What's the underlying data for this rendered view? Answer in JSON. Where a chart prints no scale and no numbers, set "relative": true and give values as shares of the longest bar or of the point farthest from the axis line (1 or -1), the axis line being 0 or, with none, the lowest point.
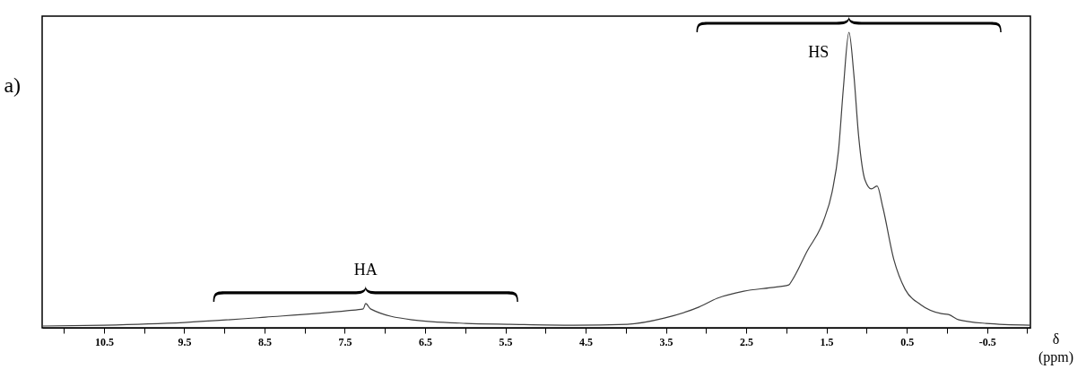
{
  "chart_data": {
    "type": "line",
    "title": "a)",
    "xlabel": "δ (ppm)",
    "relative": true,
    "grid": false,
    "xlim": [
      11.27,
      -1.04
    ],
    "xticks": [
      {
        "value": 11,
        "label": null
      },
      10.5,
      {
        "value": 10,
        "label": null
      },
      9.5,
      {
        "value": 9,
        "label": null
      },
      8.5,
      {
        "value": 8,
        "label": null
      },
      7.5,
      {
        "value": 7,
        "label": null
      },
      6.5,
      {
        "value": 6,
        "label": null
      },
      5.5,
      {
        "value": 5,
        "label": null
      },
      4.5,
      {
        "value": 4,
        "label": null
      },
      3.5,
      {
        "value": 3,
        "label": null
      },
      2.5,
      {
        "value": 2,
        "label": null
      },
      1.5,
      {
        "value": 1,
        "label": null
      },
      0.5,
      {
        "value": 0,
        "label": null
      },
      -0.5,
      {
        "value": -1,
        "label": null
      }
    ],
    "series": [
      {
        "color": "#404040",
        "x": [
          11.27,
          10.5,
          9.5,
          8.49,
          7.47,
          7.27,
          7.24,
          7.18,
          6.66,
          5.99,
          5.44,
          4.65,
          3.98,
          3.52,
          3.09,
          2.86,
          2.53,
          2.19,
          1.97,
          1.93,
          1.74,
          1.54,
          1.43,
          1.35,
          1.29,
          1.22,
          1.16,
          1.1,
          1.02,
          0.94,
          0.87,
          0.8,
          0.66,
          0.52,
          0.33,
          0.07,
          -0.02,
          -0.15,
          -0.49,
          -1.04
        ],
        "values": [
          0.006,
          0.009,
          0.018,
          0.036,
          0.058,
          0.064,
          0.082,
          0.064,
          0.027,
          0.015,
          0.012,
          0.009,
          0.012,
          0.033,
          0.07,
          0.1,
          0.124,
          0.136,
          0.145,
          0.16,
          0.26,
          0.36,
          0.46,
          0.6,
          0.81,
          1,
          0.86,
          0.65,
          0.5,
          0.47,
          0.48,
          0.41,
          0.23,
          0.13,
          0.079,
          0.048,
          0.045,
          0.027,
          0.015,
          0.009
        ]
      }
    ],
    "annotations": [
      {
        "text": "HA",
        "x": 7.24,
        "y": 0.082
      },
      {
        "text": "HS",
        "x": 1.22,
        "y": 1
      }
    ]
  }
}
